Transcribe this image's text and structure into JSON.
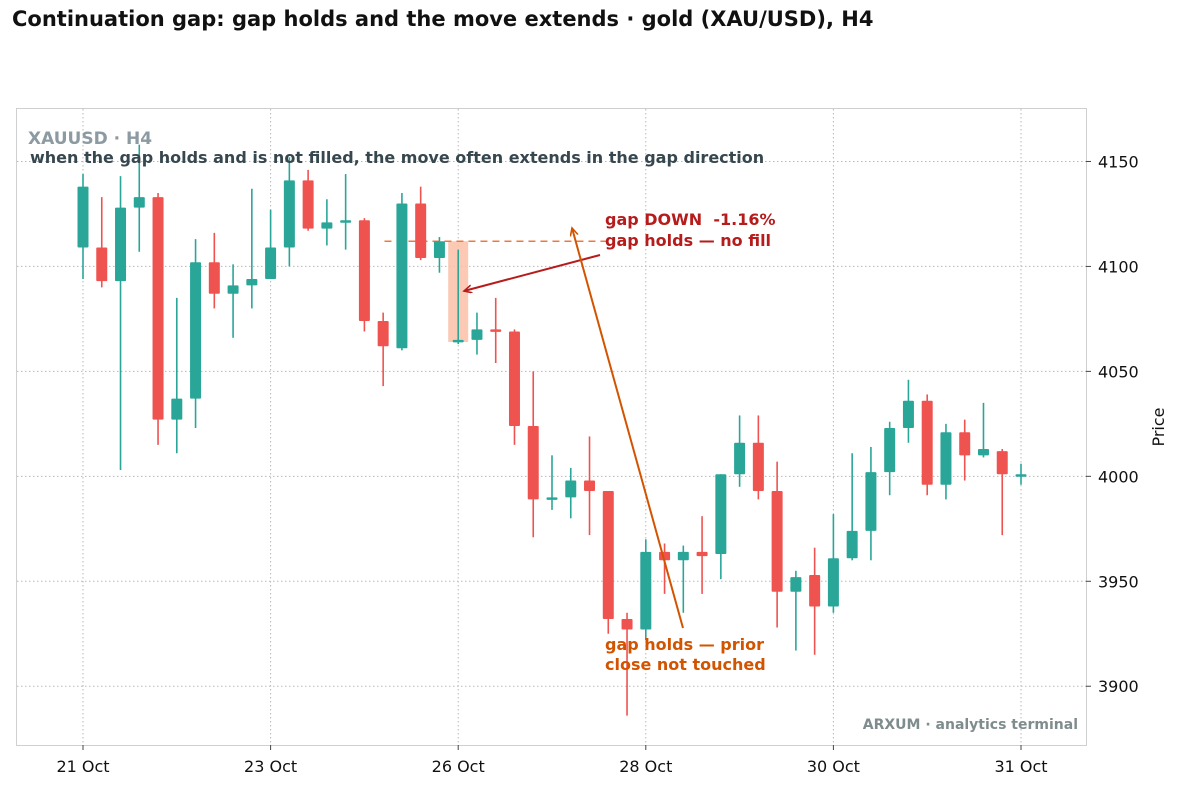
{
  "chart_data": {
    "type": "candlestick",
    "title": "Continuation gap: gap holds and the move extends  ·  gold (XAU/USD), H4",
    "panel_label": "XAUUSD · H4",
    "subtitle": "when the gap holds and is not filled, the move often extends in the gap direction",
    "ylabel": "Price",
    "watermark": "ARXUM · analytics terminal",
    "ylim": [
      3872,
      4175
    ],
    "y_ticks": [
      3900,
      3950,
      4000,
      4050,
      4100,
      4150
    ],
    "x_ticks": [
      {
        "index": 0,
        "label": "21 Oct"
      },
      {
        "index": 10,
        "label": "23 Oct"
      },
      {
        "index": 20,
        "label": "26 Oct"
      },
      {
        "index": 30,
        "label": "28 Oct"
      },
      {
        "index": 40,
        "label": "30 Oct"
      },
      {
        "index": 50,
        "label": "31 Oct"
      }
    ],
    "candles": [
      {
        "o": 4109,
        "h": 4144,
        "l": 4094,
        "c": 4138
      },
      {
        "o": 4109,
        "h": 4133,
        "l": 4090,
        "c": 4093
      },
      {
        "o": 4093,
        "h": 4143,
        "l": 4003,
        "c": 4128
      },
      {
        "o": 4128,
        "h": 4158,
        "l": 4107,
        "c": 4133
      },
      {
        "o": 4133,
        "h": 4135,
        "l": 4015,
        "c": 4027
      },
      {
        "o": 4027,
        "h": 4085,
        "l": 4011,
        "c": 4037
      },
      {
        "o": 4037,
        "h": 4113,
        "l": 4023,
        "c": 4102
      },
      {
        "o": 4102,
        "h": 4116,
        "l": 4080,
        "c": 4087
      },
      {
        "o": 4087,
        "h": 4101,
        "l": 4066,
        "c": 4091
      },
      {
        "o": 4091,
        "h": 4137,
        "l": 4080,
        "c": 4094
      },
      {
        "o": 4094,
        "h": 4127,
        "l": 4094,
        "c": 4109
      },
      {
        "o": 4109,
        "h": 4152,
        "l": 4100,
        "c": 4141
      },
      {
        "o": 4141,
        "h": 4146,
        "l": 4117,
        "c": 4118
      },
      {
        "o": 4118,
        "h": 4132,
        "l": 4110,
        "c": 4121
      },
      {
        "o": 4121,
        "h": 4144,
        "l": 4108,
        "c": 4122
      },
      {
        "o": 4122,
        "h": 4123,
        "l": 4069,
        "c": 4074
      },
      {
        "o": 4074,
        "h": 4078,
        "l": 4043,
        "c": 4062
      },
      {
        "o": 4061,
        "h": 4135,
        "l": 4060,
        "c": 4130
      },
      {
        "o": 4130,
        "h": 4138,
        "l": 4103,
        "c": 4104
      },
      {
        "o": 4104,
        "h": 4114,
        "l": 4097,
        "c": 4112
      },
      {
        "o": 4064,
        "h": 4108,
        "l": 4063,
        "c": 4065
      },
      {
        "o": 4065,
        "h": 4078,
        "l": 4058,
        "c": 4070
      },
      {
        "o": 4070,
        "h": 4085,
        "l": 4054,
        "c": 4069
      },
      {
        "o": 4069,
        "h": 4070,
        "l": 4015,
        "c": 4024
      },
      {
        "o": 4024,
        "h": 4050,
        "l": 3971,
        "c": 3989
      },
      {
        "o": 3989,
        "h": 4010,
        "l": 3984,
        "c": 3990
      },
      {
        "o": 3990,
        "h": 4004,
        "l": 3980,
        "c": 3998
      },
      {
        "o": 3998,
        "h": 4019,
        "l": 3972,
        "c": 3993
      },
      {
        "o": 3993,
        "h": 3993,
        "l": 3925,
        "c": 3932
      },
      {
        "o": 3932,
        "h": 3935,
        "l": 3886,
        "c": 3927
      },
      {
        "o": 3927,
        "h": 3970,
        "l": 3922,
        "c": 3964
      },
      {
        "o": 3964,
        "h": 3968,
        "l": 3944,
        "c": 3960
      },
      {
        "o": 3960,
        "h": 3967,
        "l": 3935,
        "c": 3964
      },
      {
        "o": 3964,
        "h": 3981,
        "l": 3944,
        "c": 3962
      },
      {
        "o": 3963,
        "h": 4001,
        "l": 3951,
        "c": 4001
      },
      {
        "o": 4001,
        "h": 4029,
        "l": 3995,
        "c": 4016
      },
      {
        "o": 4016,
        "h": 4029,
        "l": 3989,
        "c": 3993
      },
      {
        "o": 3993,
        "h": 4007,
        "l": 3928,
        "c": 3945
      },
      {
        "o": 3945,
        "h": 3955,
        "l": 3917,
        "c": 3952
      },
      {
        "o": 3953,
        "h": 3966,
        "l": 3915,
        "c": 3938
      },
      {
        "o": 3938,
        "h": 3982,
        "l": 3935,
        "c": 3961
      },
      {
        "o": 3961,
        "h": 4011,
        "l": 3960,
        "c": 3974
      },
      {
        "o": 3974,
        "h": 4014,
        "l": 3960,
        "c": 4002
      },
      {
        "o": 4002,
        "h": 4026,
        "l": 3991,
        "c": 4023
      },
      {
        "o": 4023,
        "h": 4046,
        "l": 4016,
        "c": 4036
      },
      {
        "o": 4036,
        "h": 4039,
        "l": 3991,
        "c": 3996
      },
      {
        "o": 3996,
        "h": 4025,
        "l": 3989,
        "c": 4021
      },
      {
        "o": 4021,
        "h": 4027,
        "l": 3998,
        "c": 4010
      },
      {
        "o": 4010,
        "h": 4035,
        "l": 4009,
        "c": 4013
      },
      {
        "o": 4012,
        "h": 4013,
        "l": 3972,
        "c": 4001
      },
      {
        "o": 4001,
        "h": 4006,
        "l": 3996,
        "c": 4001
      }
    ],
    "gap": {
      "from_candle": 19,
      "to_candle": 20,
      "top": 4112,
      "bottom": 4064,
      "prior_close": 4112,
      "direction": "DOWN",
      "change_label": "gap DOWN  -1.16%",
      "status_label": "gap holds — no fill"
    },
    "annotation_low": {
      "line1": "gap holds — prior",
      "line2": "close not touched"
    },
    "colors": {
      "up": "#2aa699",
      "down": "#ef5350",
      "gap_fill": "#fbc0a8",
      "gap_line": "#f07840",
      "annotation_red": "#b71c1c",
      "annotation_orange": "#d35400",
      "grid": "#b8b8b8",
      "panel_label": "#8c9aa2",
      "subtitle": "#37474f",
      "watermark": "#7f8c8d"
    }
  }
}
